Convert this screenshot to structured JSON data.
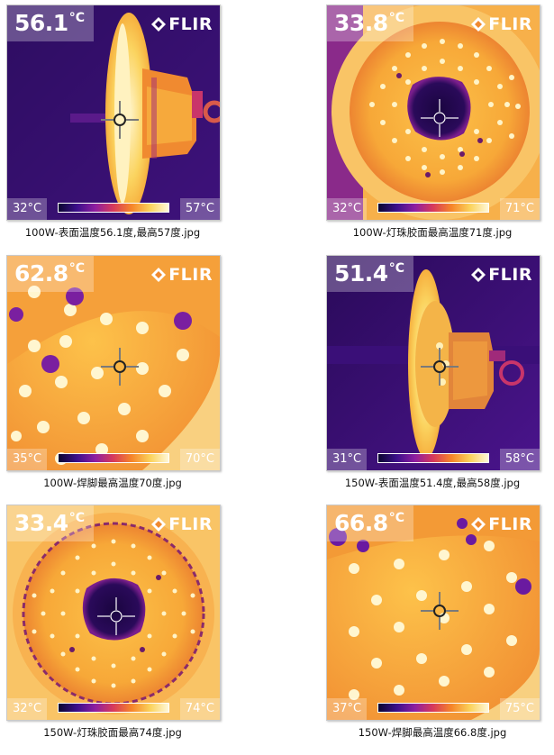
{
  "brand": "FLIR",
  "images": [
    {
      "temp": "56.1",
      "unit": "°C",
      "scale_min": "32°C",
      "scale_max": "57°C",
      "caption": "100W-表面温度56.1度,最高57度.jpg"
    },
    {
      "temp": "33.8",
      "unit": "°C",
      "scale_min": "32°C",
      "scale_max": "71°C",
      "caption": "100W-灯珠胶面最高温度71度.jpg"
    },
    {
      "temp": "62.8",
      "unit": "°C",
      "scale_min": "35°C",
      "scale_max": "70°C",
      "caption": "100W-焊脚最高温度70度.jpg"
    },
    {
      "temp": "51.4",
      "unit": "°C",
      "scale_min": "31°C",
      "scale_max": "58°C",
      "caption": "150W-表面温度51.4度,最高58度.jpg"
    },
    {
      "temp": "33.4",
      "unit": "°C",
      "scale_min": "32°C",
      "scale_max": "74°C",
      "caption": "150W-灯珠胶面最高74度.jpg"
    },
    {
      "temp": "66.8",
      "unit": "°C",
      "scale_min": "37°C",
      "scale_max": "75°C",
      "caption": "150W-焊脚最高温度66.8度.jpg"
    }
  ]
}
